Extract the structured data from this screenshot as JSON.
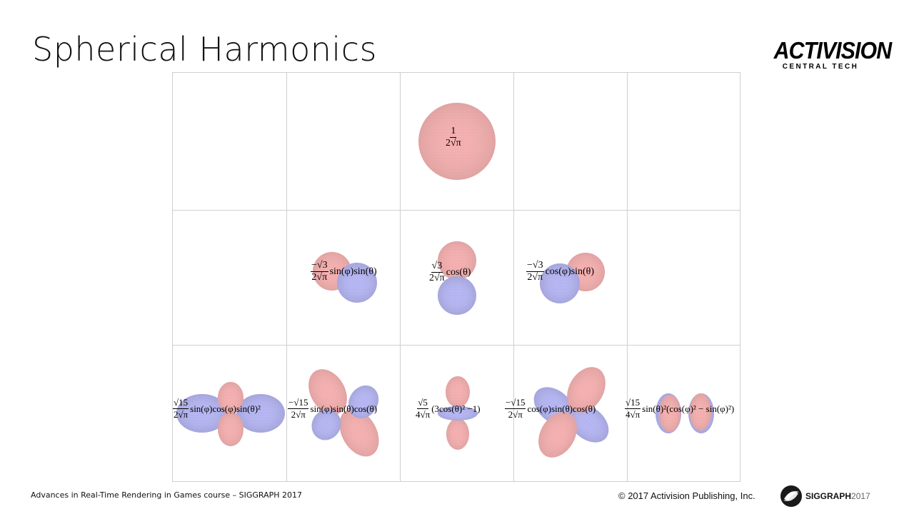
{
  "slide": {
    "title": "Spherical Harmonics",
    "footer_left": "Advances in Real-Time Rendering in Games course – SIGGRAPH 2017",
    "copyright": "© 2017 Activision Publishing, Inc."
  },
  "logo": {
    "main": "ACTIVISION",
    "sub": "CENTRAL TECH"
  },
  "siggraph": {
    "name": "SIGGRAPH",
    "year": "2017"
  },
  "colors": {
    "positive_lobe": "#f4a0a0",
    "negative_lobe": "#a8a8f2",
    "grid_line": "#cfcfcf"
  },
  "formulas": {
    "l0_m0": {
      "num": "1",
      "den": "2√π",
      "tail": ""
    },
    "l1_mneg1": {
      "num": "−√3",
      "den": "2√π",
      "tail": "sin(φ)sin(θ)"
    },
    "l1_m0": {
      "num": "√3",
      "den": "2√π",
      "tail": "cos(θ)"
    },
    "l1_m1": {
      "num": "−√3",
      "den": "2√π",
      "tail": "cos(φ)sin(θ)"
    },
    "l2_mneg2": {
      "num": "√15",
      "den": "2√π",
      "tail": "sin(φ)cos(φ)sin(θ)²"
    },
    "l2_mneg1": {
      "num": "−√15",
      "den": "2√π",
      "tail": "sin(φ)sin(θ)cos(θ)"
    },
    "l2_m0": {
      "num": "√5",
      "den": "4√π",
      "tail": "(3cos(θ)² −1)"
    },
    "l2_m1": {
      "num": "−√15",
      "den": "2√π",
      "tail": "cos(φ)sin(θ)cos(θ)"
    },
    "l2_m2": {
      "num": "√15",
      "den": "4√π",
      "tail": "sin(θ)²(cos(φ)² − sin(φ)²)"
    }
  }
}
